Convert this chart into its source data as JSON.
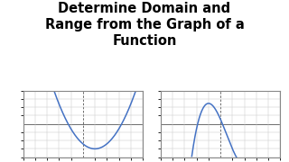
{
  "title_line1": "Determine Domain and",
  "title_line2": "Range from the Graph of a",
  "title_line3": "Function",
  "title_fontsize": 10.5,
  "title_fontweight": "bold",
  "bg_color": "#ffffff",
  "graph_xlim": [
    -5,
    5
  ],
  "graph_ylim": [
    -4,
    4
  ],
  "line_color": "#4472C4",
  "line_width": 1.1,
  "grid_color": "#c8c8c8",
  "grid_linewidth": 0.35,
  "axis_color": "#555555",
  "axis_linewidth": 0.6,
  "border_color": "#888888",
  "border_linewidth": 0.8
}
